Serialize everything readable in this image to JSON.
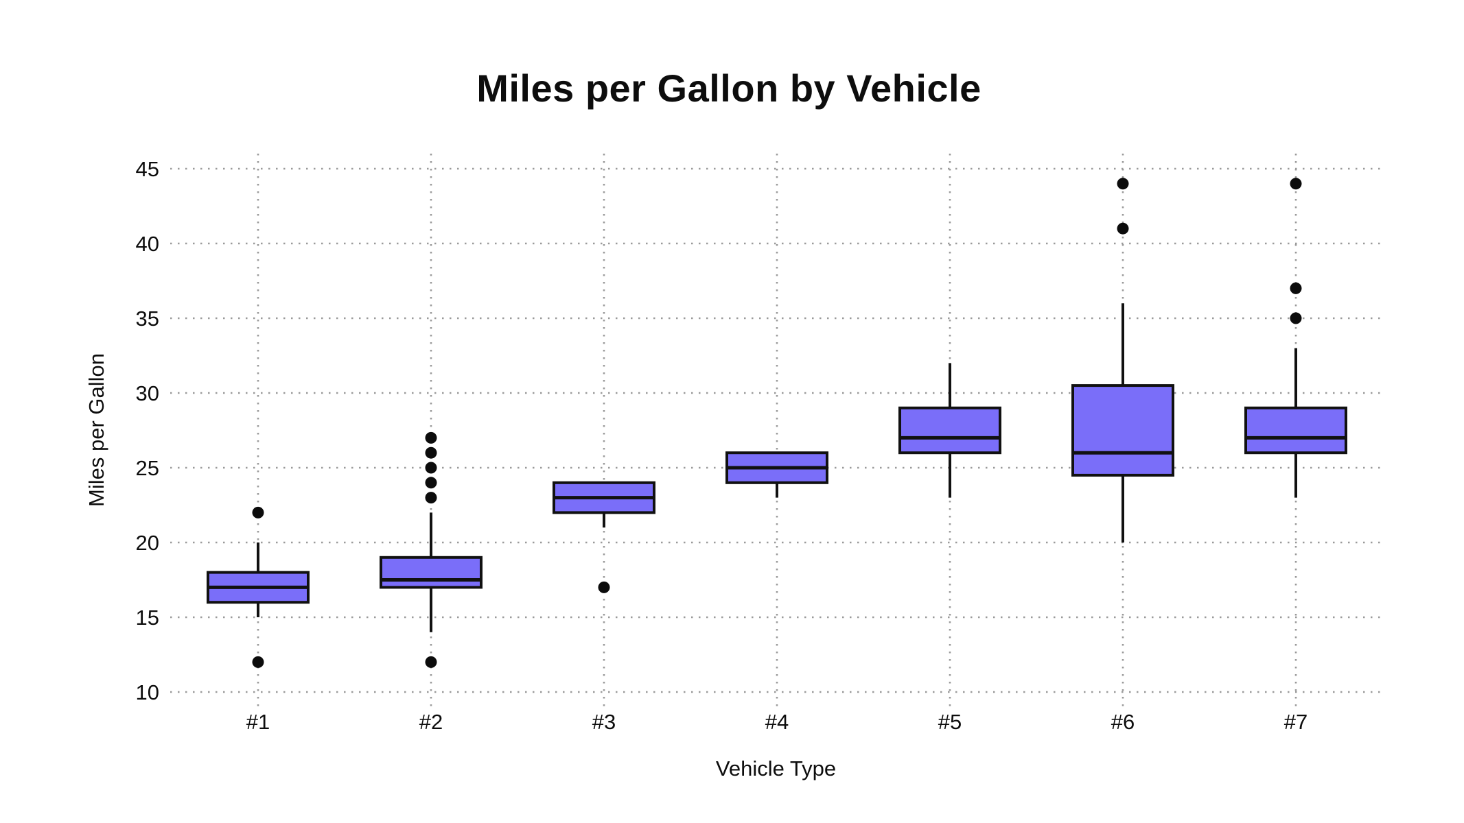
{
  "chart_data": {
    "type": "boxplot",
    "title": "Miles per Gallon by Vehicle",
    "xlabel": "Vehicle Type",
    "ylabel": "Miles per Gallon",
    "categories": [
      "#1",
      "#2",
      "#3",
      "#4",
      "#5",
      "#6",
      "#7"
    ],
    "y_ticks": [
      10,
      15,
      20,
      25,
      30,
      35,
      40,
      45
    ],
    "ylim": [
      10,
      45
    ],
    "grid": {
      "style": "dotted",
      "horizontal": true,
      "vertical": true
    },
    "legend": "none",
    "series": [
      {
        "label": "#1",
        "whisker_low": 15,
        "q1": 16,
        "median": 17,
        "q3": 18,
        "whisker_high": 20,
        "outliers": [
          22,
          12
        ]
      },
      {
        "label": "#2",
        "whisker_low": 14,
        "q1": 17,
        "median": 17.5,
        "q3": 19,
        "whisker_high": 22,
        "outliers": [
          27,
          26,
          25,
          24,
          23,
          12
        ]
      },
      {
        "label": "#3",
        "whisker_low": 21,
        "q1": 22,
        "median": 23,
        "q3": 24,
        "whisker_high": 24,
        "outliers": [
          17
        ]
      },
      {
        "label": "#4",
        "whisker_low": 23,
        "q1": 24,
        "median": 25,
        "q3": 26,
        "whisker_high": 26,
        "outliers": []
      },
      {
        "label": "#5",
        "whisker_low": 23,
        "q1": 26,
        "median": 27,
        "q3": 29,
        "whisker_high": 32,
        "outliers": []
      },
      {
        "label": "#6",
        "whisker_low": 20,
        "q1": 24.5,
        "median": 26,
        "q3": 30.5,
        "whisker_high": 36,
        "outliers": [
          41,
          44
        ]
      },
      {
        "label": "#7",
        "whisker_low": 23,
        "q1": 26,
        "median": 27,
        "q3": 29,
        "whisker_high": 33,
        "outliers": [
          35,
          37,
          44
        ]
      }
    ],
    "colors": {
      "box_fill": "#7a6ef9",
      "box_stroke": "#111111",
      "median_line": "#111111",
      "whisker": "#111111",
      "outlier": "#0c0c0c",
      "grid": "#9a9a9a",
      "text": "#0d0d0d",
      "background": "#ffffff"
    }
  }
}
